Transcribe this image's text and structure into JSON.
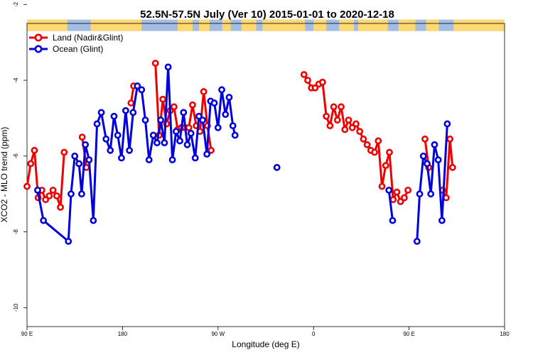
{
  "chart_data": {
    "type": "line",
    "title": "52.5N-57.5N July (Ver 10)   2015-01-01 to 2020-12-18",
    "xlabel": "Longitude (deg E)",
    "ylabel": "XCO2 - MLO trend (ppm)",
    "xlim": [
      90,
      450
    ],
    "ylim": [
      -10.5,
      -2.5
    ],
    "x_ticks": [
      90,
      180,
      270,
      360,
      450,
      540
    ],
    "x_tick_labels": [
      "90 E",
      "180",
      "90 W",
      "0",
      "90 E",
      "180"
    ],
    "y_ticks": [
      -10,
      -8,
      -6,
      -4,
      -2
    ],
    "y_tick_labels": [
      "-10",
      "-8",
      "-6",
      "-4",
      "-2"
    ],
    "legend_position": "top-left",
    "colors": {
      "land": "#ee0000",
      "ocean": "#0000dd",
      "map_land": "#fdd873",
      "map_ocean": "#a4bde3"
    },
    "series": [
      {
        "name": "Land (Nadir&Glint)",
        "color": "#ee0000",
        "segments": [
          [
            [
              90,
              -6.8
            ],
            [
              93.5,
              -6.2
            ],
            [
              97,
              -5.85
            ],
            [
              100.5,
              -7.1
            ],
            [
              104,
              -6.9
            ],
            [
              107.5,
              -7.15
            ],
            [
              111,
              -7.05
            ],
            [
              114.5,
              -6.9
            ],
            [
              118,
              -7.05
            ],
            [
              121.5,
              -7.35
            ],
            [
              125,
              -5.9
            ]
          ],
          [
            [
              142,
              -5.5
            ],
            [
              146,
              -6.3
            ]
          ],
          [
            [
              188,
              -4.6
            ],
            [
              190.5,
              -4.15
            ]
          ],
          [
            [
              211,
              -3.55
            ],
            [
              214.5,
              -5.45
            ],
            [
              218,
              -4.5
            ],
            [
              221.5,
              -5.15
            ],
            [
              225,
              -4.8
            ],
            [
              228.5,
              -4.7
            ],
            [
              232,
              -5.3
            ],
            [
              235.5,
              -5.25
            ],
            [
              239,
              -5.25
            ],
            [
              242.5,
              -5.25
            ],
            [
              246,
              -4.65
            ],
            [
              249.5,
              -5.2
            ],
            [
              253,
              -5.35
            ],
            [
              256.5,
              -4.3
            ],
            [
              260,
              -5.2
            ],
            [
              263.5,
              -5.85
            ]
          ],
          [
            [
              351,
              -3.85
            ],
            [
              354.5,
              -4.0
            ],
            [
              358,
              -4.2
            ],
            [
              361.5,
              -4.2
            ],
            [
              365,
              -4.1
            ],
            [
              368.5,
              -4.05
            ],
            [
              372,
              -4.95
            ],
            [
              375.5,
              -5.2
            ],
            [
              379,
              -4.7
            ],
            [
              382.5,
              -5.05
            ],
            [
              386,
              -4.7
            ],
            [
              389.5,
              -5.3
            ],
            [
              393,
              -5.05
            ],
            [
              396.5,
              -5.25
            ],
            [
              400,
              -5.15
            ],
            [
              403.5,
              -5.35
            ],
            [
              407,
              -5.55
            ],
            [
              410.5,
              -5.7
            ],
            [
              414,
              -5.85
            ],
            [
              417.5,
              -5.9
            ],
            [
              421,
              -5.6
            ],
            [
              424.5,
              -6.8
            ],
            [
              428,
              -6.25
            ],
            [
              431.5,
              -5.9
            ],
            [
              435,
              -7.15
            ],
            [
              438.5,
              -6.95
            ],
            [
              442,
              -7.2
            ],
            [
              445.5,
              -7.1
            ],
            [
              449,
              -6.9
            ]
          ],
          [
            [
              465,
              -5.55
            ],
            [
              468.5,
              -6.3
            ]
          ],
          [
            [
              481.5,
              -6.9
            ],
            [
              485,
              -7.1
            ],
            [
              488.5,
              -5.55
            ],
            [
              491,
              -6.3
            ]
          ]
        ]
      },
      {
        "name": "Ocean (Glint)",
        "color": "#0000dd",
        "segments": [
          [
            [
              100,
              -6.9
            ],
            [
              105.5,
              -7.7
            ],
            [
              129,
              -8.25
            ],
            [
              131.5,
              -7.0
            ],
            [
              135,
              -6.0
            ],
            [
              139,
              -6.2
            ],
            [
              141.5,
              -7.0
            ],
            [
              145,
              -5.7
            ],
            [
              148.5,
              -6.1
            ],
            [
              152.5,
              -7.7
            ],
            [
              156,
              -5.15
            ],
            [
              160,
              -4.85
            ],
            [
              164.5,
              -5.55
            ],
            [
              168.5,
              -5.85
            ],
            [
              172,
              -4.95
            ],
            [
              175.5,
              -5.45
            ],
            [
              179,
              -6.05
            ],
            [
              183,
              -4.8
            ],
            [
              186.5,
              -5.85
            ],
            [
              190,
              -4.85
            ],
            [
              194,
              -4.15
            ],
            [
              198,
              -4.25
            ],
            [
              201.5,
              -5.05
            ],
            [
              205,
              -6.1
            ],
            [
              209,
              -5.45
            ],
            [
              212.5,
              -5.65
            ],
            [
              216,
              -5.05
            ],
            [
              219.5,
              -5.65
            ],
            [
              223,
              -3.65
            ],
            [
              227,
              -6.1
            ],
            [
              230.5,
              -5.35
            ],
            [
              234,
              -5.6
            ],
            [
              237.5,
              -4.85
            ],
            [
              241,
              -5.7
            ],
            [
              244.5,
              -5.4
            ],
            [
              248.5,
              -6.05
            ],
            [
              252,
              -4.95
            ],
            [
              255.5,
              -5.05
            ],
            [
              259.5,
              -5.95
            ],
            [
              263,
              -4.55
            ],
            [
              266.5,
              -4.6
            ],
            [
              270,
              -5.25
            ],
            [
              273.5,
              -4.25
            ],
            [
              277,
              -4.9
            ],
            [
              280.5,
              -4.45
            ],
            [
              284,
              -5.2
            ],
            [
              286,
              -5.45
            ]
          ],
          [
            [
              325.5,
              -6.3
            ]
          ],
          [
            [
              431,
              -6.9
            ],
            [
              434.5,
              -7.7
            ]
          ],
          [
            [
              457.5,
              -8.25
            ],
            [
              460,
              -7.0
            ],
            [
              463.5,
              -6.0
            ],
            [
              467,
              -6.2
            ],
            [
              470.5,
              -7.0
            ],
            [
              474,
              -5.7
            ],
            [
              477.5,
              -6.1
            ],
            [
              481,
              -7.7
            ],
            [
              486,
              -5.15
            ]
          ]
        ]
      }
    ]
  }
}
